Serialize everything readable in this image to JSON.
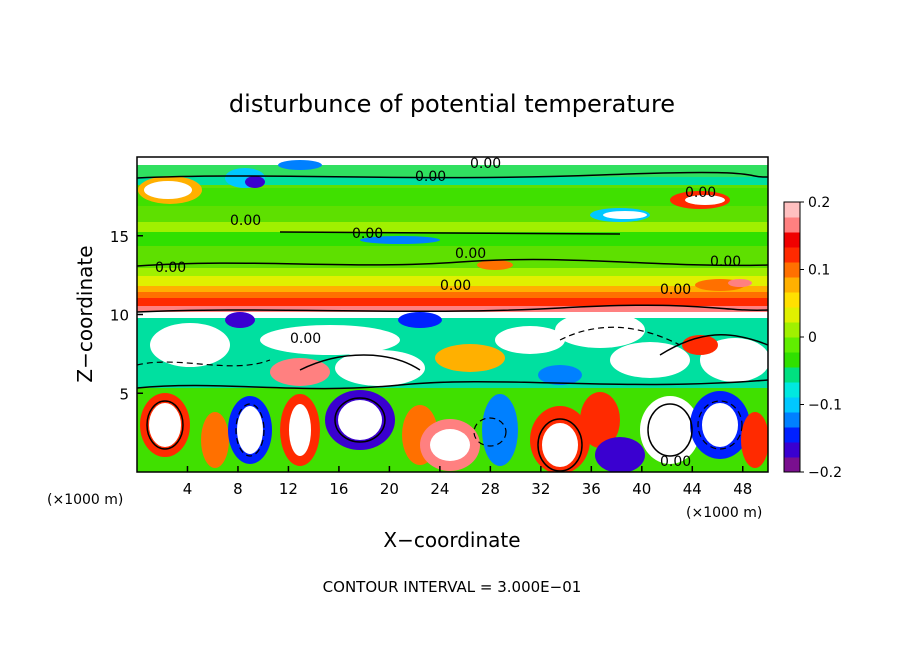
{
  "chart_data": {
    "type": "heatmap",
    "title": "disturbunce of potential temperature",
    "xlabel": "X−coordinate",
    "ylabel": "Z−coordinate",
    "x_unit": "(×1000 m)",
    "footer": "CONTOUR INTERVAL = 3.000E−01",
    "xlim": [
      0,
      50
    ],
    "ylim": [
      0,
      20
    ],
    "x_ticks": [
      "4",
      "8",
      "12",
      "16",
      "20",
      "24",
      "28",
      "32",
      "36",
      "40",
      "44",
      "48"
    ],
    "y_ticks": [
      "5",
      "10",
      "15"
    ],
    "colorbar": {
      "range": [
        -0.2,
        0.2
      ],
      "tick_labels": [
        "0.2",
        "0.1",
        "0",
        "−0.1",
        "−0.2"
      ],
      "colors": [
        "#7a0f8f",
        "#3a00d0",
        "#0020ff",
        "#0080ff",
        "#00c8ff",
        "#00e8e0",
        "#00e080",
        "#30e000",
        "#60ee00",
        "#a0f000",
        "#e0f000",
        "#ffe000",
        "#ffb000",
        "#ff7000",
        "#ff2a00",
        "#f00000",
        "#ff8080",
        "#ffc0c0"
      ]
    },
    "contour_label": "0.00",
    "contour_interval": 0.3
  },
  "colors": {
    "green_background": "#5ee000",
    "white_saturation": "#ffffff"
  }
}
